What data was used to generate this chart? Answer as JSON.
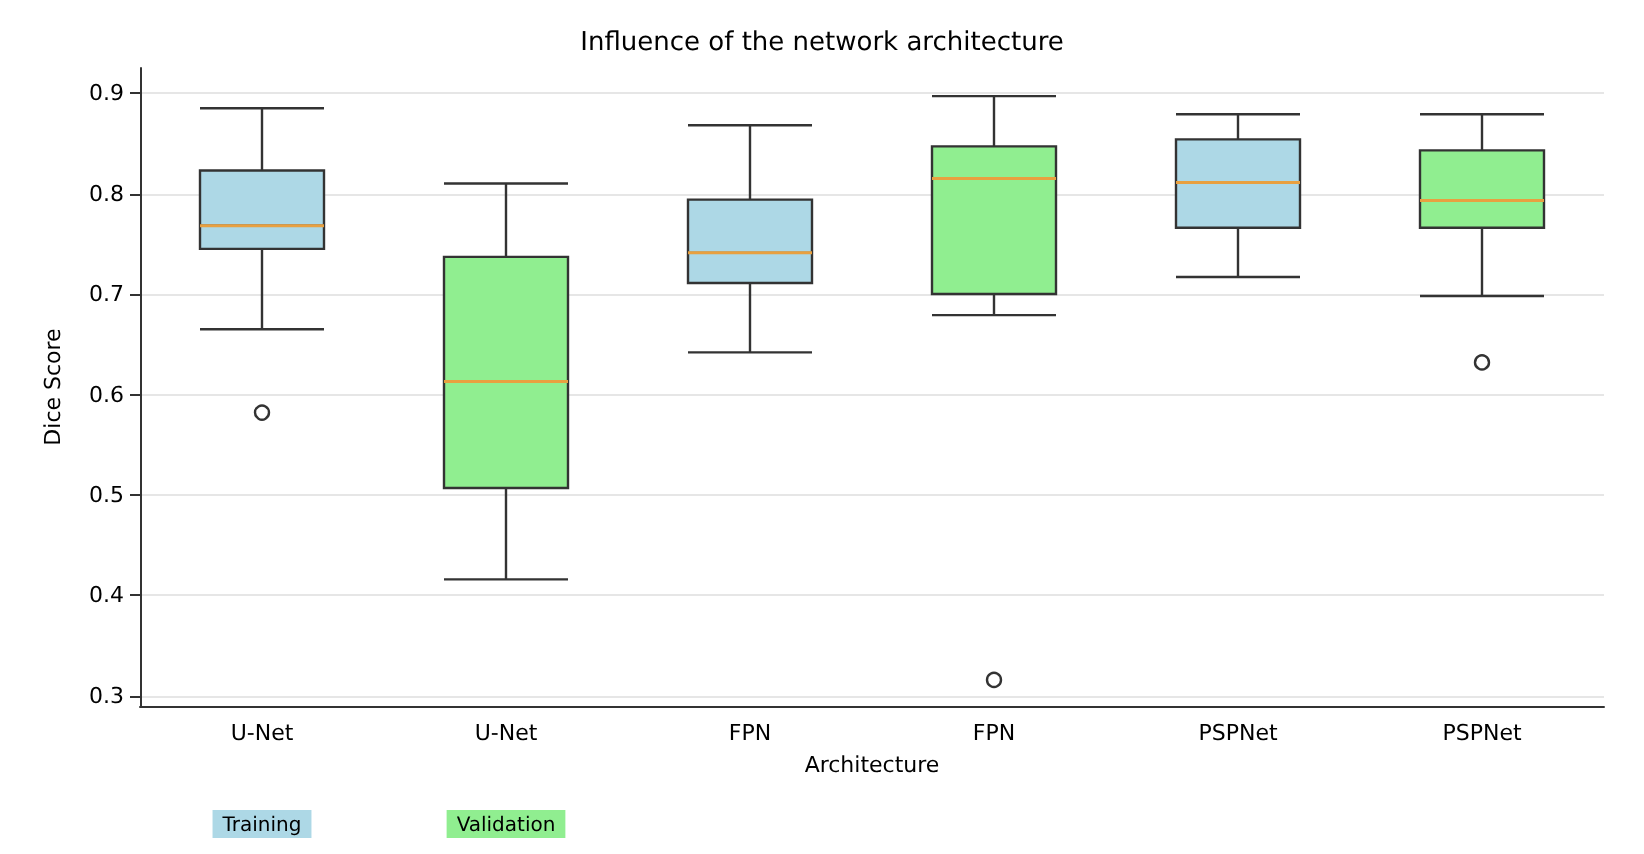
{
  "chart_data": {
    "type": "box",
    "title": "Influence of the network architecture",
    "xlabel": "Architecture",
    "ylabel": "Dice Score",
    "categories": [
      "U-Net",
      "U-Net",
      "FPN",
      "FPN",
      "PSPNet",
      "PSPNet"
    ],
    "series": [
      {
        "name": "Training",
        "color": "#add8e6",
        "boxes": [
          {
            "low": 0.665,
            "q1": 0.745,
            "median": 0.768,
            "q3": 0.823,
            "high": 0.885,
            "outliers": [
              0.582
            ]
          },
          null,
          {
            "low": 0.642,
            "q1": 0.711,
            "median": 0.741,
            "q3": 0.794,
            "high": 0.868
          },
          null,
          {
            "low": 0.717,
            "q1": 0.766,
            "median": 0.811,
            "q3": 0.854,
            "high": 0.879
          },
          null
        ]
      },
      {
        "name": "Validation",
        "color": "#90ee90",
        "boxes": [
          null,
          {
            "low": 0.416,
            "q1": 0.507,
            "median": 0.613,
            "q3": 0.737,
            "high": 0.81
          },
          null,
          {
            "low": 0.679,
            "q1": 0.7,
            "median": 0.815,
            "q3": 0.847,
            "high": 0.897,
            "outliers": [
              0.316
            ]
          },
          null,
          {
            "low": 0.698,
            "q1": 0.766,
            "median": 0.793,
            "q3": 0.843,
            "high": 0.879,
            "outliers": [
              0.632
            ]
          }
        ]
      }
    ],
    "ylim": [
      0.29,
      0.925
    ],
    "yticks": [
      0.3,
      0.4,
      0.5,
      0.6,
      0.7,
      0.8,
      0.9
    ],
    "grid": "y",
    "legend": "bottom"
  }
}
